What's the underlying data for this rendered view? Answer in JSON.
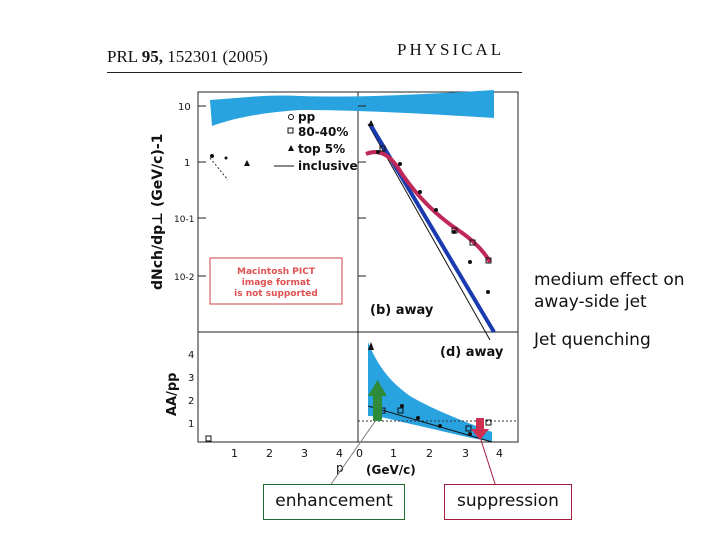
{
  "header": {
    "journal_prefix": "PRL",
    "volume": "95,",
    "article_year": "152301 (2005)",
    "journal_name": "PHYSICAL"
  },
  "figure": {
    "top_panel": {
      "y_axis_label": "dNch/dp⊥ (GeV/c)-1",
      "y_ticks": [
        "10",
        "1",
        "10-1",
        "10-2"
      ],
      "legend": [
        "pp",
        "80-40%",
        "top 5%",
        "inclusive"
      ],
      "panel_label": "(b) away",
      "placeholder_text": [
        "Macintosh PICT",
        "image format",
        "is not supported"
      ]
    },
    "bottom_panel": {
      "y_axis_label": "AA/pp",
      "y_ticks": [
        "4",
        "3",
        "2",
        "1"
      ],
      "panel_label": "(d) away",
      "x_ticks_left": [
        "1",
        "2",
        "3",
        "4"
      ],
      "x_ticks_right": [
        "0",
        "1",
        "2",
        "3",
        "4"
      ],
      "x_label_left": "p",
      "x_label_right": "(GeV/c)"
    },
    "colors": {
      "band": "#29a3e0",
      "line_blue": "#1a3ab0",
      "line_red": "#c0285a",
      "arrow_green": "#2e8b3a",
      "arrow_red": "#d03050"
    }
  },
  "annotations": {
    "medium_effect": "medium effect on away-side jet",
    "jet_quenching": "Jet quenching",
    "enhancement": "enhancement",
    "suppression": "suppression"
  }
}
